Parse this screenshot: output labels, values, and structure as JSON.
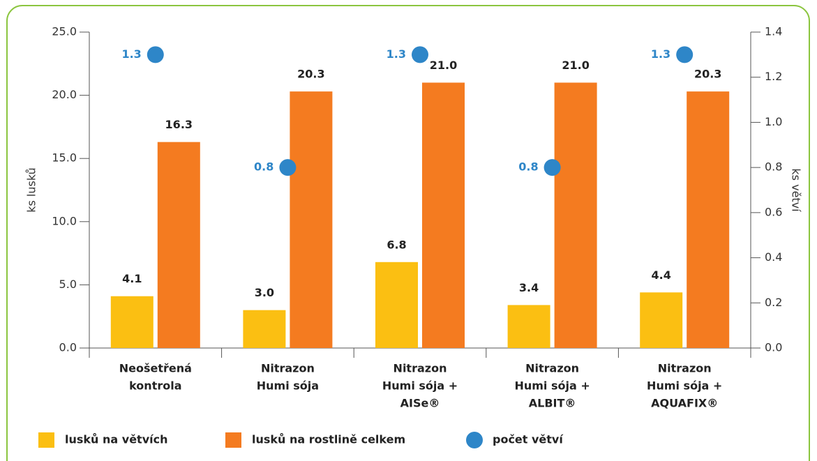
{
  "chart_data": {
    "type": "bar",
    "categories": [
      [
        "Neošetřená",
        "kontrola"
      ],
      [
        "Nitrazon",
        "Humi sója"
      ],
      [
        "Nitrazon",
        "Humi sója +",
        "AISe®"
      ],
      [
        "Nitrazon",
        "Humi sója +",
        "ALBIT®"
      ],
      [
        "Nitrazon",
        "Humi sója +",
        "AQUAFIX®"
      ]
    ],
    "series": [
      {
        "name": "lusků na větvích",
        "color": "#fbbf12",
        "values": [
          4.1,
          3.0,
          6.8,
          3.4,
          4.4
        ],
        "value_labels": [
          "4.1",
          "3.0",
          "6.8",
          "3.4",
          "4.4"
        ]
      },
      {
        "name": "lusků na rostlině celkem",
        "color": "#f47b20",
        "values": [
          16.3,
          20.3,
          21.0,
          21.0,
          20.3
        ],
        "value_labels": [
          "16.3",
          "20.3",
          "21.0",
          "21.0",
          "20.3"
        ]
      },
      {
        "name": "počet větví",
        "color": "#2e86c8",
        "axis": "y2",
        "type": "scatter",
        "values": [
          1.3,
          0.8,
          1.3,
          0.8,
          1.3
        ],
        "value_labels": [
          "1.3",
          "0.8",
          "1.3",
          "0.8",
          "1.3"
        ]
      }
    ],
    "ylabel": "ks lusků",
    "y2label": "ks větví",
    "ylim": [
      0,
      25
    ],
    "yticks": [
      {
        "value": 0,
        "label": "0.0"
      },
      {
        "value": 5,
        "label": "5.0"
      },
      {
        "value": 10,
        "label": "10.0"
      },
      {
        "value": 15,
        "label": "15.0"
      },
      {
        "value": 20,
        "label": "20.0"
      },
      {
        "value": 25,
        "label": "25.0"
      }
    ],
    "y2lim": [
      0,
      1.4
    ],
    "y2ticks": [
      {
        "value": 0,
        "label": "0.0"
      },
      {
        "value": 0.2,
        "label": "0.2"
      },
      {
        "value": 0.4,
        "label": "0.4"
      },
      {
        "value": 0.6,
        "label": "0.6"
      },
      {
        "value": 0.8,
        "label": "0.8"
      },
      {
        "value": 1.0,
        "label": "1.0"
      },
      {
        "value": 1.2,
        "label": "1.2"
      },
      {
        "value": 1.4,
        "label": "1.4"
      }
    ],
    "legend": "bottom"
  }
}
